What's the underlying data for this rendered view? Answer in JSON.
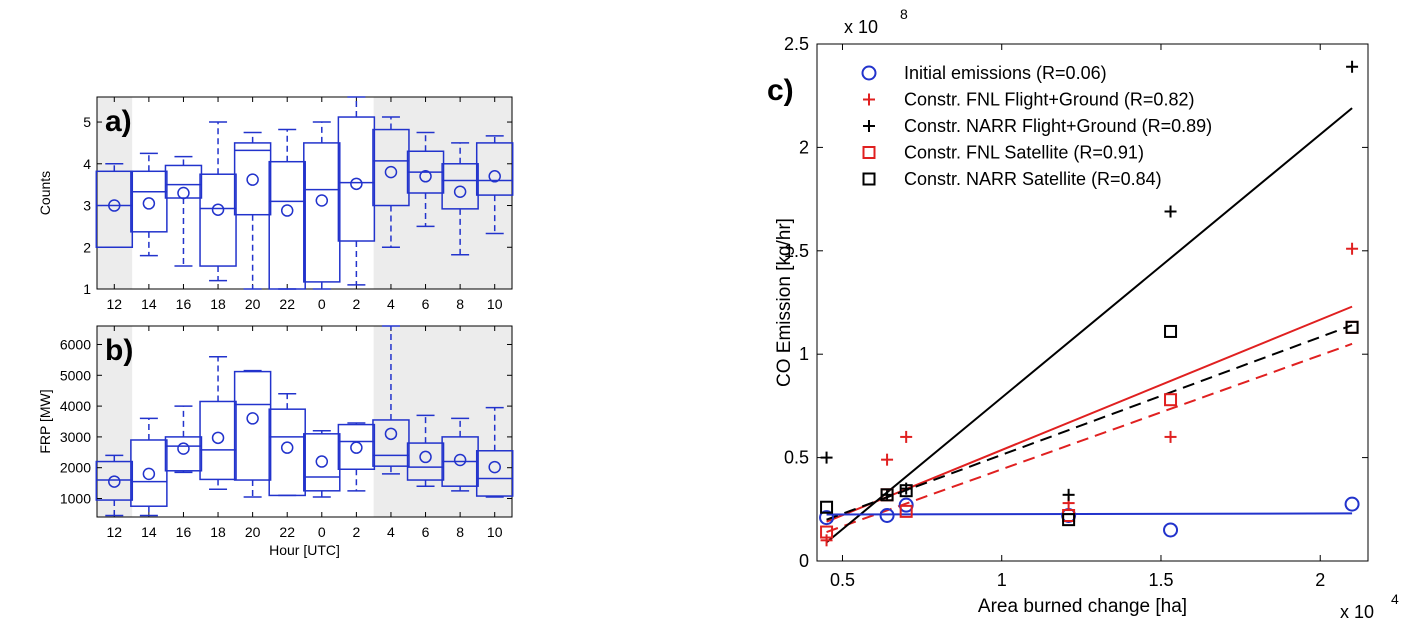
{
  "chart_data": [
    {
      "type": "box",
      "panel_label": "a)",
      "ylabel": "Counts",
      "xlabel": "",
      "ylim": [
        1,
        5.6
      ],
      "yticks": [
        "1",
        "2",
        "3",
        "4",
        "5"
      ],
      "shaded_categories": [
        "12",
        "4",
        "6",
        "8",
        "10"
      ],
      "color": "#2233cc",
      "categories": [
        "12",
        "14",
        "16",
        "18",
        "20",
        "22",
        "0",
        "2",
        "4",
        "6",
        "8",
        "10"
      ],
      "boxes": [
        {
          "whisker_low": 2.0,
          "q1": 2.0,
          "median": 3.0,
          "q3": 3.82,
          "whisker_high": 4.0,
          "mean": 3.0
        },
        {
          "whisker_low": 1.8,
          "q1": 2.37,
          "median": 3.33,
          "q3": 3.82,
          "whisker_high": 4.25,
          "mean": 3.05
        },
        {
          "whisker_low": 1.55,
          "q1": 3.18,
          "median": 3.5,
          "q3": 3.96,
          "whisker_high": 4.17,
          "mean": 3.3
        },
        {
          "whisker_low": 1.2,
          "q1": 1.55,
          "median": 2.93,
          "q3": 3.75,
          "whisker_high": 5.0,
          "mean": 2.9
        },
        {
          "whisker_low": 1.0,
          "q1": 2.78,
          "median": 4.32,
          "q3": 4.5,
          "whisker_high": 4.75,
          "mean": 3.62
        },
        {
          "whisker_low": 1.0,
          "q1": 1.0,
          "median": 3.1,
          "q3": 4.05,
          "whisker_high": 4.82,
          "mean": 2.88
        },
        {
          "whisker_low": 1.0,
          "q1": 1.17,
          "median": 3.38,
          "q3": 4.5,
          "whisker_high": 5.0,
          "mean": 3.12
        },
        {
          "whisker_low": 1.1,
          "q1": 2.15,
          "median": 3.55,
          "q3": 5.12,
          "whisker_high": 5.6,
          "mean": 3.52
        },
        {
          "whisker_low": 2.0,
          "q1": 3.0,
          "median": 4.07,
          "q3": 4.82,
          "whisker_high": 5.12,
          "mean": 3.8
        },
        {
          "whisker_low": 2.5,
          "q1": 3.3,
          "median": 3.8,
          "q3": 4.3,
          "whisker_high": 4.75,
          "mean": 3.7
        },
        {
          "whisker_low": 1.82,
          "q1": 2.92,
          "median": 3.6,
          "q3": 4.0,
          "whisker_high": 4.5,
          "mean": 3.33
        },
        {
          "whisker_low": 2.33,
          "q1": 3.25,
          "median": 3.6,
          "q3": 4.5,
          "whisker_high": 4.67,
          "mean": 3.7
        }
      ]
    },
    {
      "type": "box",
      "panel_label": "b)",
      "ylabel": "FRP [MW]",
      "xlabel": "Hour [UTC]",
      "ylim": [
        400,
        6600
      ],
      "yticks": [
        "1000",
        "2000",
        "3000",
        "4000",
        "5000",
        "6000"
      ],
      "shaded_categories": [
        "12",
        "4",
        "6",
        "8",
        "10"
      ],
      "color": "#2233cc",
      "categories": [
        "12",
        "14",
        "16",
        "18",
        "20",
        "22",
        "0",
        "2",
        "4",
        "6",
        "8",
        "10"
      ],
      "boxes": [
        {
          "whisker_low": 450,
          "q1": 950,
          "median": 1600,
          "q3": 2200,
          "whisker_high": 2400,
          "mean": 1550
        },
        {
          "whisker_low": 450,
          "q1": 750,
          "median": 1550,
          "q3": 2900,
          "whisker_high": 3600,
          "mean": 1800
        },
        {
          "whisker_low": 1850,
          "q1": 1900,
          "median": 2700,
          "q3": 3000,
          "whisker_high": 4000,
          "mean": 2620
        },
        {
          "whisker_low": 1300,
          "q1": 1620,
          "median": 2580,
          "q3": 4150,
          "whisker_high": 5600,
          "mean": 2970
        },
        {
          "whisker_low": 1050,
          "q1": 1600,
          "median": 4050,
          "q3": 5120,
          "whisker_high": 5150,
          "mean": 3600
        },
        {
          "whisker_low": 1100,
          "q1": 1100,
          "median": 3000,
          "q3": 3900,
          "whisker_high": 4400,
          "mean": 2650
        },
        {
          "whisker_low": 1050,
          "q1": 1250,
          "median": 1700,
          "q3": 3100,
          "whisker_high": 3200,
          "mean": 2200
        },
        {
          "whisker_low": 1250,
          "q1": 1950,
          "median": 2850,
          "q3": 3400,
          "whisker_high": 3450,
          "mean": 2650
        },
        {
          "whisker_low": 1800,
          "q1": 2050,
          "median": 2400,
          "q3": 3550,
          "whisker_high": 6600,
          "mean": 3100
        },
        {
          "whisker_low": 1400,
          "q1": 1600,
          "median": 2020,
          "q3": 2800,
          "whisker_high": 3700,
          "mean": 2350
        },
        {
          "whisker_low": 1250,
          "q1": 1400,
          "median": 2200,
          "q3": 3000,
          "whisker_high": 3600,
          "mean": 2250
        },
        {
          "whisker_low": 1050,
          "q1": 1080,
          "median": 1650,
          "q3": 2550,
          "whisker_high": 3950,
          "mean": 2020
        }
      ]
    },
    {
      "type": "scatter",
      "panel_label": "c)",
      "xlabel": "Area burned change [ha]",
      "ylabel": "CO Emission [kg/hr]",
      "x_multiplier_label": "x 10",
      "x_multiplier_exp": "4",
      "y_multiplier_label": "x 10",
      "y_multiplier_exp": "8",
      "xlim": [
        0.42,
        2.15
      ],
      "ylim": [
        0,
        2.5
      ],
      "xticks": [
        "0.5",
        "1",
        "1.5",
        "2"
      ],
      "yticks": [
        "0",
        "0.5",
        "1",
        "1.5",
        "2",
        "2.5"
      ],
      "legend_position": "top-left",
      "series": [
        {
          "name": "Initial emissions (R=0.06)",
          "marker": "circle",
          "color": "#2233cc",
          "x": [
            0.45,
            0.64,
            0.7,
            1.21,
            1.53,
            2.1
          ],
          "y": [
            0.21,
            0.22,
            0.27,
            0.22,
            0.15,
            0.275
          ],
          "fit_line": {
            "x": [
              0.45,
              2.1
            ],
            "y": [
              0.225,
              0.23
            ],
            "style": "solid"
          }
        },
        {
          "name": "Constr. FNL Flight+Ground (R=0.82)",
          "marker": "plus",
          "color": "#e02020",
          "x": [
            0.45,
            0.64,
            0.7,
            1.21,
            1.53,
            2.1
          ],
          "y": [
            0.1,
            0.49,
            0.6,
            0.28,
            0.6,
            1.51
          ],
          "fit_line": {
            "x": [
              0.45,
              2.1
            ],
            "y": [
              0.19,
              1.23
            ],
            "style": "solid"
          }
        },
        {
          "name": "Constr. NARR Flight+Ground (R=0.89)",
          "marker": "plus",
          "color": "#000000",
          "x": [
            0.45,
            0.64,
            0.7,
            1.21,
            1.53,
            2.1
          ],
          "y": [
            0.5,
            0.32,
            0.35,
            0.32,
            1.69,
            2.39
          ],
          "fit_line": {
            "x": [
              0.45,
              2.1
            ],
            "y": [
              0.09,
              2.19
            ],
            "style": "solid"
          }
        },
        {
          "name": "Constr. FNL Satellite (R=0.91)",
          "marker": "square",
          "color": "#e02020",
          "x": [
            0.45,
            0.64,
            0.7,
            1.21,
            1.53,
            2.1
          ],
          "y": [
            0.14,
            0.32,
            0.24,
            0.22,
            0.78,
            1.13
          ],
          "fit_line": {
            "x": [
              0.45,
              2.1
            ],
            "y": [
              0.14,
              1.05
            ],
            "style": "dashed"
          }
        },
        {
          "name": "Constr. NARR Satellite (R=0.84)",
          "marker": "square",
          "color": "#000000",
          "x": [
            0.45,
            0.64,
            0.7,
            1.21,
            1.53,
            2.1
          ],
          "y": [
            0.26,
            0.32,
            0.34,
            0.2,
            1.11,
            1.13
          ],
          "fit_line": {
            "x": [
              0.45,
              2.1
            ],
            "y": [
              0.2,
              1.14
            ],
            "style": "dashed"
          }
        }
      ]
    }
  ]
}
